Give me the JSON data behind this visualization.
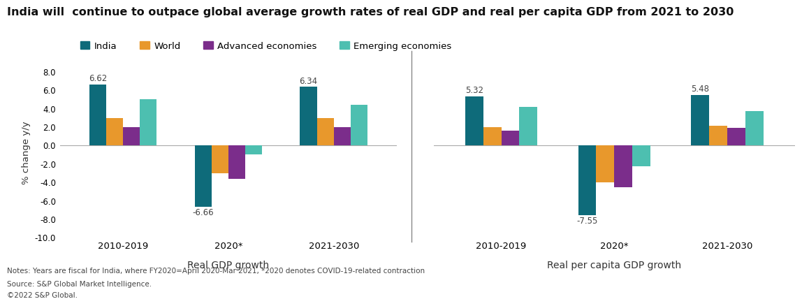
{
  "title": "India will  continue to outpace global average growth rates of real GDP and real per capita GDP from 2021 to 2030",
  "legend_labels": [
    "India",
    "World",
    "Advanced economies",
    "Emerging economies"
  ],
  "colors": [
    "#0e6b7a",
    "#e8982c",
    "#7b2d8b",
    "#4dbfb0"
  ],
  "group1_label": "Real GDP growth",
  "group2_label": "Real per capita GDP growth",
  "period_labels": [
    "2010-2019",
    "2020*",
    "2021-2030"
  ],
  "gdp_data": {
    "2010-2019": [
      6.62,
      3.0,
      2.0,
      5.0
    ],
    "2020*": [
      -6.66,
      -3.0,
      -3.6,
      -1.0
    ],
    "2021-2030": [
      6.34,
      3.0,
      2.0,
      4.4
    ]
  },
  "per_capita_data": {
    "2010-2019": [
      5.32,
      2.0,
      1.6,
      4.2
    ],
    "2020*": [
      -7.55,
      -4.0,
      -4.5,
      -2.3
    ],
    "2021-2030": [
      5.48,
      2.1,
      1.9,
      3.7
    ]
  },
  "ylabel": "% change y/y",
  "ylim": [
    -10.0,
    8.5
  ],
  "yticks": [
    -10.0,
    -8.0,
    -6.0,
    -4.0,
    -2.0,
    0.0,
    2.0,
    4.0,
    6.0,
    8.0
  ],
  "notes_line1": "Notes: Years are fiscal for India, where FY2020=April 2020-Mar 2021, *2020 denotes COVID-19-related contraction",
  "notes_line2": "Source: S&P Global Market Intelligence.",
  "notes_line3": "©2022 S&P Global.",
  "background_color": "#ffffff"
}
